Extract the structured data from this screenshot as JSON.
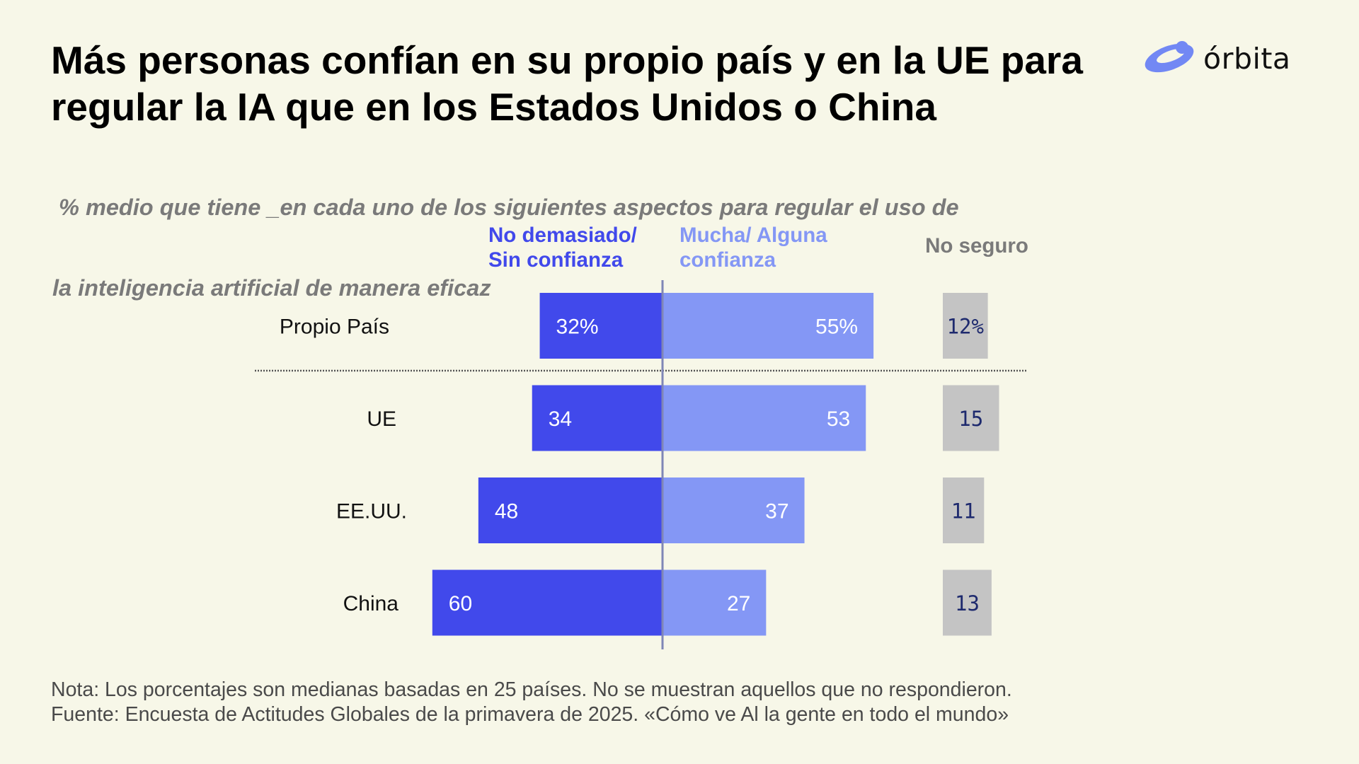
{
  "title": {
    "line1": "Más personas confían en su propio país y en la UE para",
    "line2": "regular la IA que en los Estados Unidos o China"
  },
  "subtitle": {
    "line1": " % medio que tiene _en cada uno de los siguientes aspectos para regular el uso de",
    "line2": "la inteligencia artificial de manera eficaz"
  },
  "logo": {
    "name": "órbita",
    "icon": "orbit-ring-icon"
  },
  "chart_data": {
    "type": "bar",
    "orientation": "horizontal-diverging",
    "categories": [
      "Propio País",
      "UE",
      "EE.UU.",
      "China"
    ],
    "series": [
      {
        "name": "No demasiado/ Sin confianza",
        "name_lines": [
          "No demasiado/",
          "Sin confianza"
        ],
        "values": [
          32,
          34,
          48,
          60
        ],
        "labels": [
          "32%",
          "34",
          "48",
          "60"
        ],
        "color": "#4149eb",
        "label_color": "#ffffff"
      },
      {
        "name": "Mucha/ Alguna confianza",
        "name_lines": [
          "Mucha/ Alguna",
          "confianza"
        ],
        "values": [
          55,
          53,
          37,
          27
        ],
        "labels": [
          "55%",
          "53",
          "37",
          "27"
        ],
        "color": "#8497f5",
        "label_color": "#ffffff"
      },
      {
        "name": "No seguro",
        "name_lines": [
          "No seguro"
        ],
        "values": [
          12,
          15,
          11,
          13
        ],
        "labels": [
          "12%",
          "15",
          "11",
          "13"
        ],
        "color": "#c4c4c4",
        "label_color": "#1e2a6e"
      }
    ],
    "colors": {
      "axis_line": "#7f86b6",
      "separator": "#555555",
      "category_label": "#111111",
      "header_gray": "#7a7a7a"
    },
    "separator_after": "Propio País"
  },
  "footer": {
    "note": "Nota: Los porcentajes son medianas basadas en 25 países. No se muestran aquellos que no respondieron.",
    "source": "Fuente: Encuesta de Actitudes Globales de la primavera de 2025. «Cómo ve Al la gente en todo el mundo»"
  }
}
